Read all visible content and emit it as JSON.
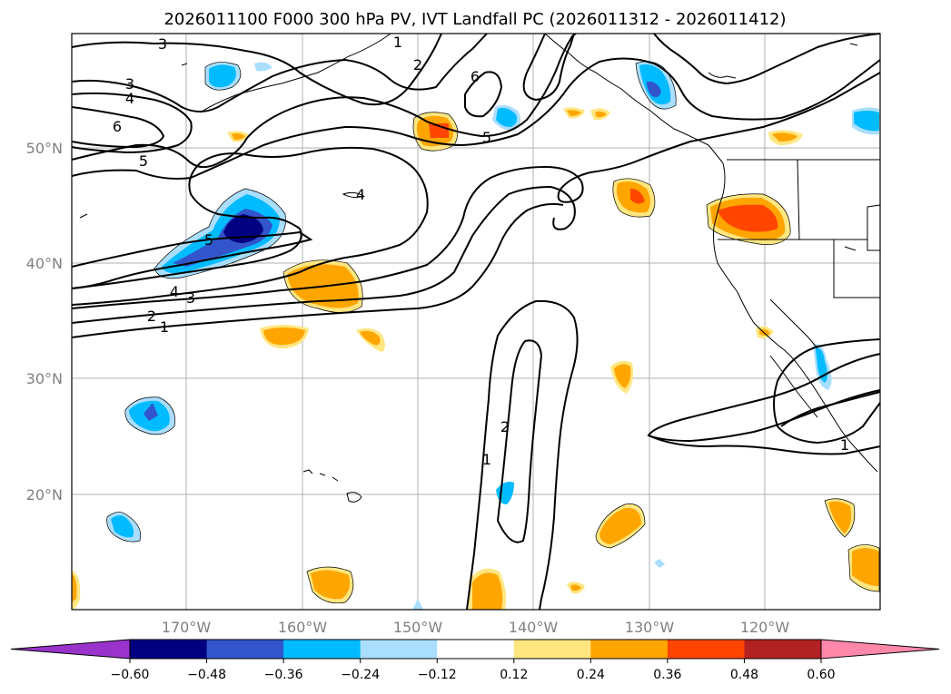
{
  "title": "2026011100 F000 300 hPa PV, IVT Landfall PC (2026011312 - 2026011412)",
  "map": {
    "lon_range": [
      -180,
      -110
    ],
    "lat_range": [
      10,
      60
    ],
    "lon_labels": [
      "170°W",
      "160°W",
      "150°W",
      "140°W",
      "130°W",
      "120°W"
    ],
    "lat_labels": [
      "50°N",
      "40°N",
      "30°N",
      "20°N"
    ]
  },
  "colorbar": {
    "ticks": [
      "−0.60",
      "−0.48",
      "−0.36",
      "−0.24",
      "−0.12",
      "0.12",
      "0.24",
      "0.36",
      "0.48",
      "0.60"
    ],
    "colors": [
      "#9933cc",
      "#000080",
      "#3355cc",
      "#00bbff",
      "#aadeff",
      "#ffffff",
      "#ffe680",
      "#ffa500",
      "#ff4500",
      "#b22222",
      "#ff88aa"
    ]
  },
  "pv_contour_labels": [
    "3",
    "3",
    "4",
    "6",
    "5",
    "2",
    "1",
    "6",
    "5",
    "4",
    "5",
    "4",
    "3",
    "2",
    "1",
    "2",
    "1",
    "1"
  ]
}
